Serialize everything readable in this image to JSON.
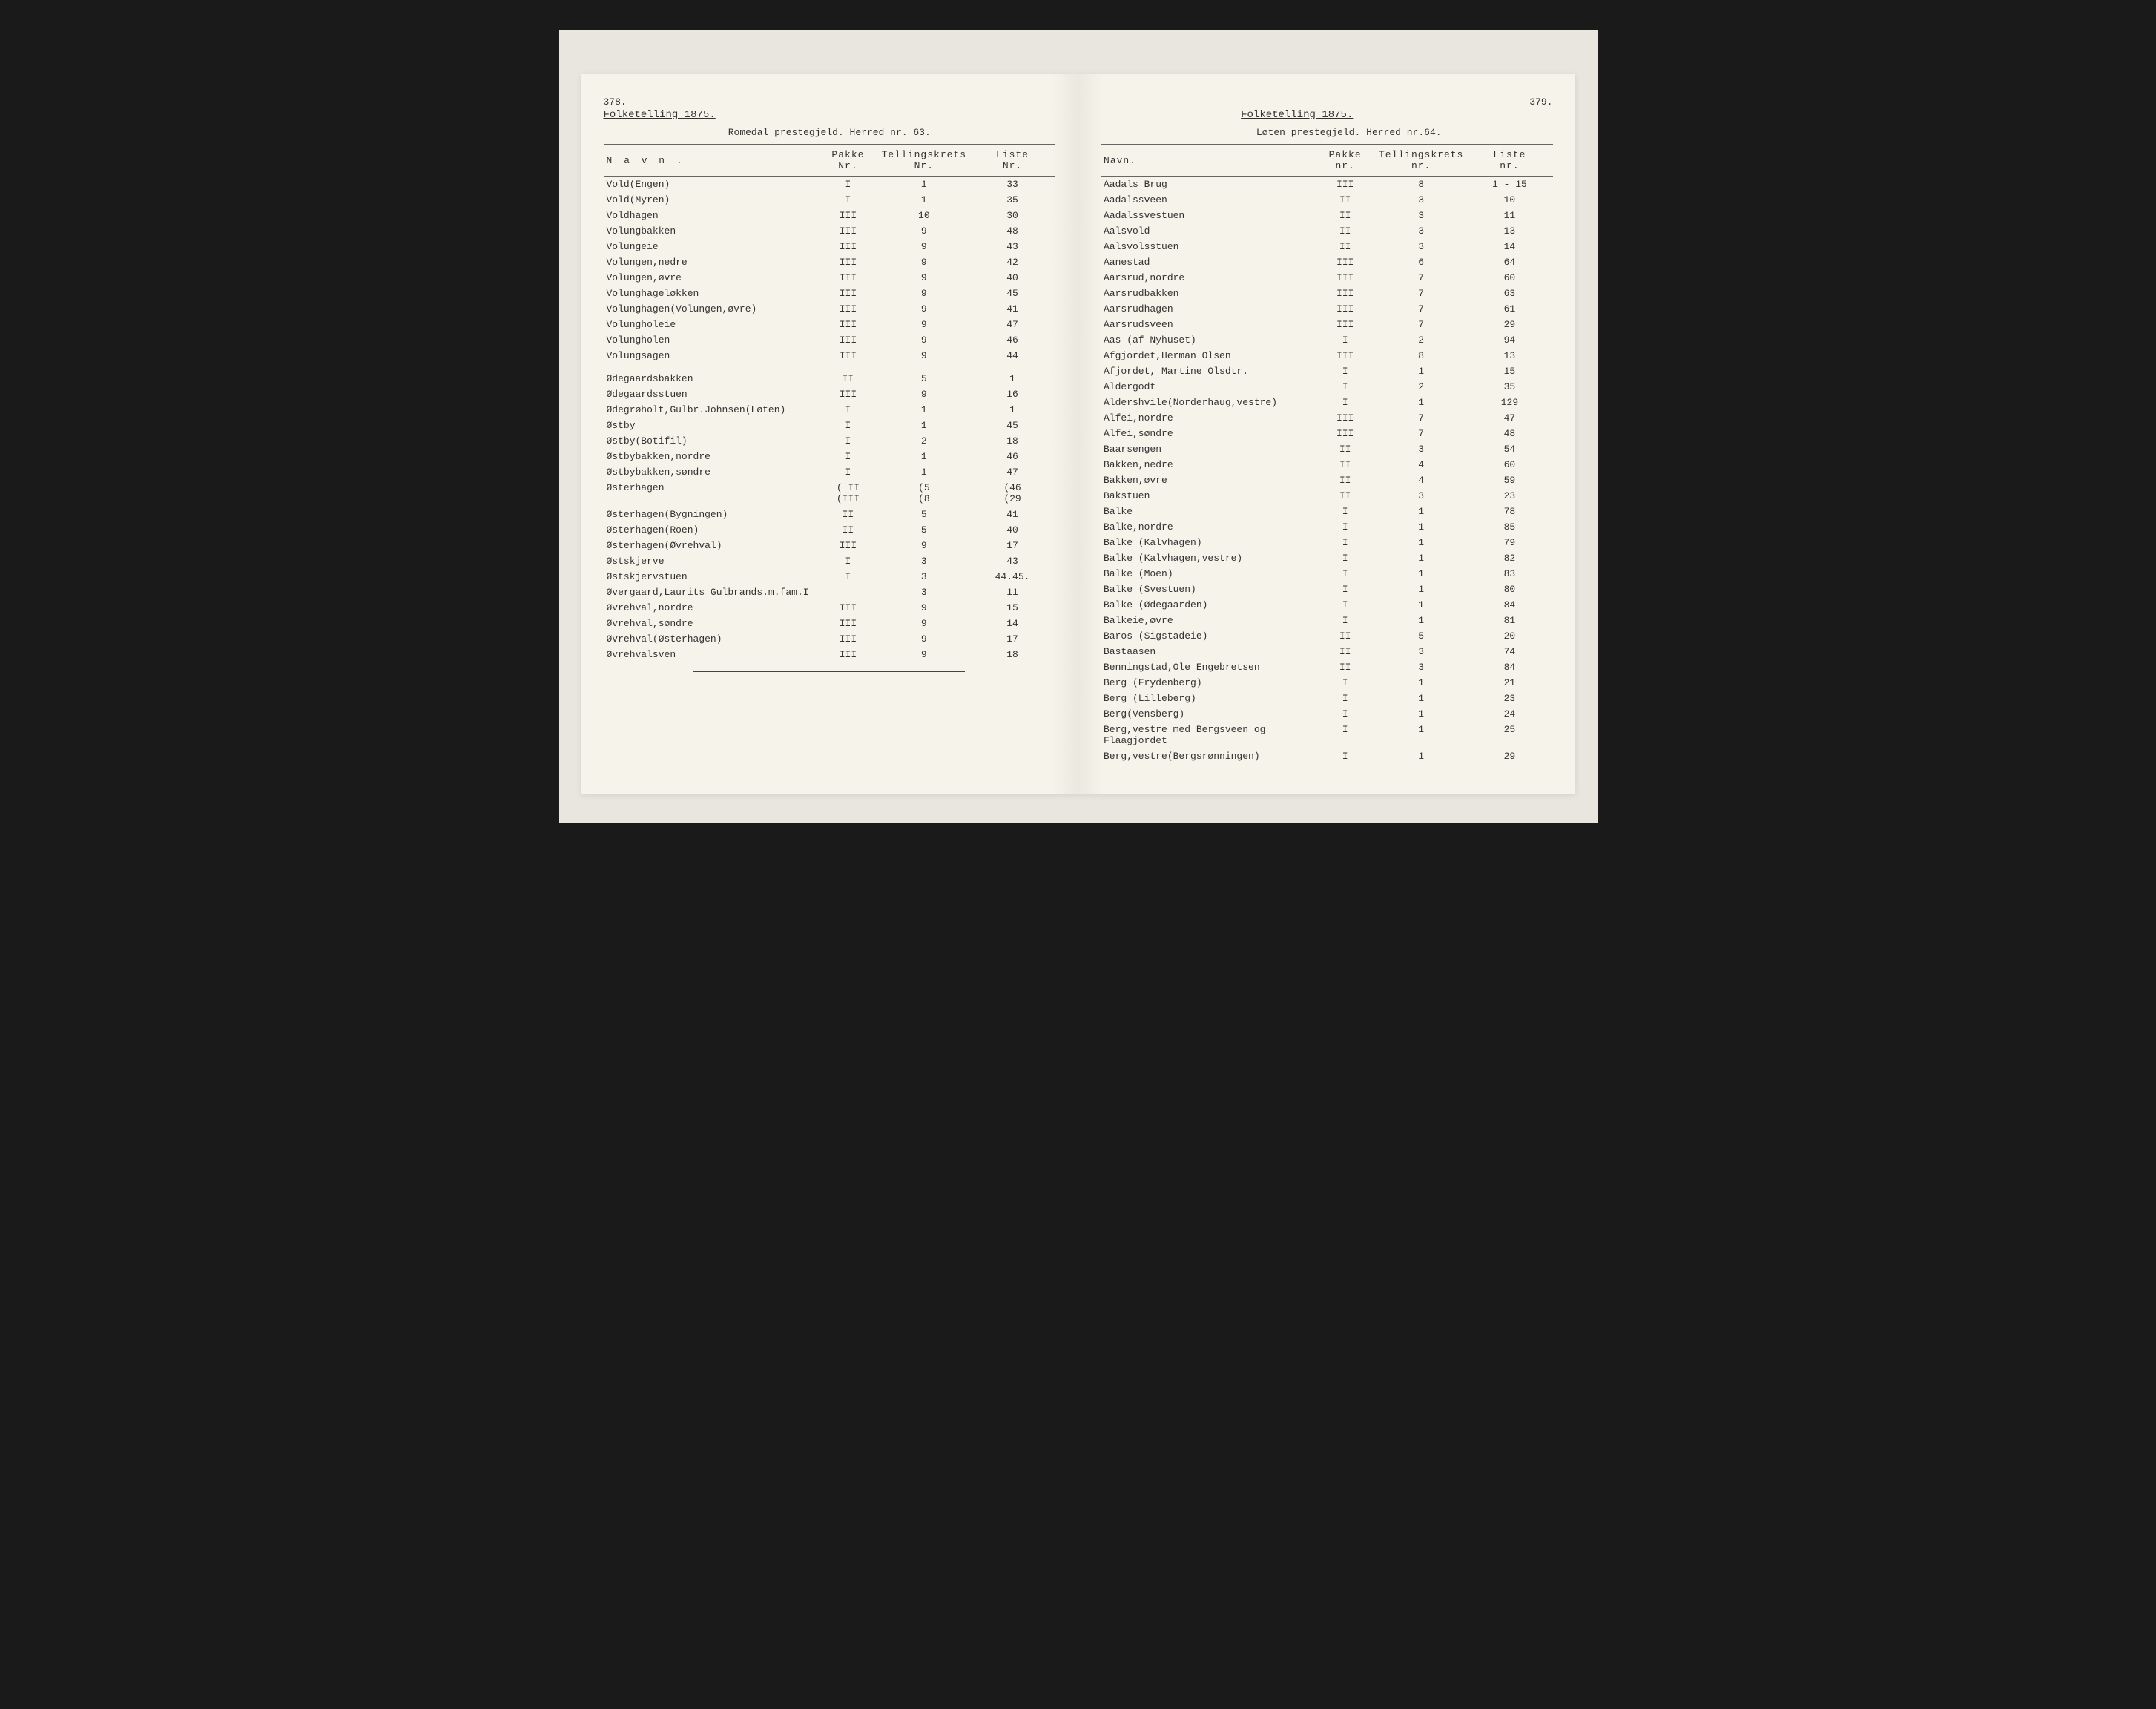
{
  "left": {
    "page_number": "378.",
    "census_title": "Folketelling 1875.",
    "sub_header": "Romedal prestegjeld.  Herred nr. 63.",
    "columns": [
      "N a v n .",
      "Pakke\nNr.",
      "Tellingskrets\nNr.",
      "Liste\nNr."
    ],
    "rows": [
      [
        "Vold(Engen)",
        "I",
        "1",
        "33"
      ],
      [
        "Vold(Myren)",
        "I",
        "1",
        "35"
      ],
      [
        "Voldhagen",
        "III",
        "10",
        "30"
      ],
      [
        "Volungbakken",
        "III",
        "9",
        "48"
      ],
      [
        "Volungeie",
        "III",
        "9",
        "43"
      ],
      [
        "Volungen,nedre",
        "III",
        "9",
        "42"
      ],
      [
        "Volungen,øvre",
        "III",
        "9",
        "40"
      ],
      [
        "Volunghageløkken",
        "III",
        "9",
        "45"
      ],
      [
        "Volunghagen(Volungen,øvre)",
        "III",
        "9",
        "41"
      ],
      [
        "Volungholeie",
        "III",
        "9",
        "47"
      ],
      [
        "Volungholen",
        "III",
        "9",
        "46"
      ],
      [
        "Volungsagen",
        "III",
        "9",
        "44"
      ]
    ],
    "rows2": [
      [
        "Ødegaardsbakken",
        "II",
        "5",
        "1"
      ],
      [
        "Ødegaardsstuen",
        "III",
        "9",
        "16"
      ],
      [
        "Ødegrøholt,Gulbr.Johnsen(Løten)",
        "I",
        "1",
        "1"
      ],
      [
        "Østby",
        "I",
        "1",
        "45"
      ],
      [
        "Østby(Botifil)",
        "I",
        "2",
        "18"
      ],
      [
        "Østbybakken,nordre",
        "I",
        "1",
        "46"
      ],
      [
        "Østbybakken,søndre",
        "I",
        "1",
        "47"
      ],
      [
        "Østerhagen",
        "( II\n(III",
        "(5\n(8",
        "(46\n(29"
      ],
      [
        "Østerhagen(Bygningen)",
        "II",
        "5",
        "41"
      ],
      [
        "Østerhagen(Roen)",
        "II",
        "5",
        "40"
      ],
      [
        "Østerhagen(Øvrehval)",
        "III",
        "9",
        "17"
      ],
      [
        "Østskjerve",
        "I",
        "3",
        "43"
      ],
      [
        "Østskjervstuen",
        "I",
        "3",
        "44.45."
      ],
      [
        "Øvergaard,Laurits Gulbrands.m.fam.I",
        "",
        "3",
        "11"
      ],
      [
        "Øvrehval,nordre",
        "III",
        "9",
        "15"
      ],
      [
        "Øvrehval,søndre",
        "III",
        "9",
        "14"
      ],
      [
        "Øvrehval(Østerhagen)",
        "III",
        "9",
        "17"
      ],
      [
        "Øvrehvalsven",
        "III",
        "9",
        "18"
      ]
    ]
  },
  "right": {
    "page_number": "379.",
    "census_title": "Folketelling 1875.",
    "sub_header": "Løten prestegjeld. Herred nr.64.",
    "columns": [
      "Navn.",
      "Pakke\nnr.",
      "Tellingskrets\nnr.",
      "Liste\nnr."
    ],
    "rows": [
      [
        "Aadals Brug",
        "III",
        "8",
        "1 - 15"
      ],
      [
        "Aadalssveen",
        "II",
        "3",
        "10"
      ],
      [
        "Aadalssvestuen",
        "II",
        "3",
        "11"
      ],
      [
        "Aalsvold",
        "II",
        "3",
        "13"
      ],
      [
        "Aalsvolsstuen",
        "II",
        "3",
        "14"
      ],
      [
        "Aanestad",
        "III",
        "6",
        "64"
      ],
      [
        "Aarsrud,nordre",
        "III",
        "7",
        "60"
      ],
      [
        "Aarsrudbakken",
        "III",
        "7",
        "63"
      ],
      [
        "Aarsrudhagen",
        "III",
        "7",
        "61"
      ],
      [
        "Aarsrudsveen",
        "III",
        "7",
        "29"
      ],
      [
        "Aas (af Nyhuset)",
        "I",
        "2",
        "94"
      ],
      [
        "Afgjordet,Herman Olsen",
        "III",
        "8",
        "13"
      ],
      [
        "Afjordet, Martine Olsdtr.",
        "I",
        "1",
        "15"
      ],
      [
        "Aldergodt",
        "I",
        "2",
        "35"
      ],
      [
        "Aldershvile(Norderhaug,vestre)",
        "I",
        "1",
        "129"
      ],
      [
        "Alfei,nordre",
        "III",
        "7",
        "47"
      ],
      [
        "Alfei,søndre",
        "III",
        "7",
        "48"
      ],
      [
        "Baarsengen",
        "II",
        "3",
        "54"
      ],
      [
        "Bakken,nedre",
        "II",
        "4",
        "60"
      ],
      [
        "Bakken,øvre",
        "II",
        "4",
        "59"
      ],
      [
        "Bakstuen",
        "II",
        "3",
        "23"
      ],
      [
        "Balke",
        "I",
        "1",
        "78"
      ],
      [
        "Balke,nordre",
        "I",
        "1",
        "85"
      ],
      [
        "Balke (Kalvhagen)",
        "I",
        "1",
        "79"
      ],
      [
        "Balke (Kalvhagen,vestre)",
        "I",
        "1",
        "82"
      ],
      [
        "Balke (Moen)",
        "I",
        "1",
        "83"
      ],
      [
        "Balke (Svestuen)",
        "I",
        "1",
        "80"
      ],
      [
        "Balke (Ødegaarden)",
        "I",
        "1",
        "84"
      ],
      [
        "Balkeie,øvre",
        "I",
        "1",
        "81"
      ],
      [
        "Baros (Sigstadeie)",
        "II",
        "5",
        "20"
      ],
      [
        "Bastaasen",
        "II",
        "3",
        "74"
      ],
      [
        "Benningstad,Ole Engebretsen",
        "II",
        "3",
        "84"
      ],
      [
        "Berg (Frydenberg)",
        "I",
        "1",
        "21"
      ],
      [
        "Berg (Lilleberg)",
        "I",
        "1",
        "23"
      ],
      [
        "Berg(Vensberg)",
        "I",
        "1",
        "24"
      ],
      [
        "Berg,vestre med Bergsveen og\n             Flaagjordet",
        "I",
        "1",
        "25"
      ],
      [
        "Berg,vestre(Bergsrønningen)",
        "I",
        "1",
        "29"
      ]
    ]
  }
}
